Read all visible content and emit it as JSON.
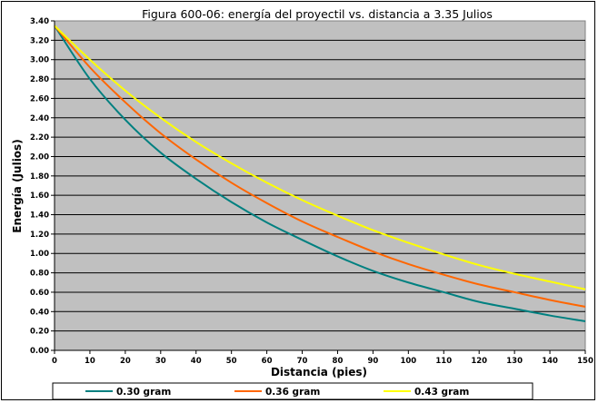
{
  "chart_data": {
    "type": "line",
    "title": "Figura 600-06: energía del proyectil vs. distancia a 3.35 Julios",
    "xlabel": "Distancia (pies)",
    "ylabel": "Energía (Julios)",
    "xlim": [
      0,
      150
    ],
    "ylim": [
      0,
      3.4
    ],
    "xticks": [
      0,
      10,
      20,
      30,
      40,
      50,
      60,
      70,
      80,
      90,
      100,
      110,
      120,
      130,
      140,
      150
    ],
    "yticks": [
      "0.00",
      "0.20",
      "0.40",
      "0.60",
      "0.80",
      "1.00",
      "1.20",
      "1.40",
      "1.60",
      "1.80",
      "2.00",
      "2.20",
      "2.40",
      "2.60",
      "2.80",
      "3.00",
      "3.20",
      "3.40"
    ],
    "grid": true,
    "legend_position": "bottom",
    "plot_background": "#C0C0C0",
    "x": [
      0,
      10,
      20,
      30,
      40,
      50,
      60,
      70,
      80,
      90,
      100,
      110,
      120,
      130,
      140,
      150
    ],
    "series": [
      {
        "name": "0.30 gram",
        "color": "#008080",
        "values": [
          3.35,
          2.8,
          2.38,
          2.04,
          1.77,
          1.53,
          1.32,
          1.14,
          0.97,
          0.82,
          0.7,
          0.6,
          0.5,
          0.43,
          0.36,
          0.3
        ]
      },
      {
        "name": "0.36 gram",
        "color": "#FF6600",
        "values": [
          3.35,
          2.92,
          2.56,
          2.24,
          1.97,
          1.73,
          1.52,
          1.33,
          1.17,
          1.02,
          0.89,
          0.78,
          0.68,
          0.6,
          0.52,
          0.45
        ]
      },
      {
        "name": "0.43 gram",
        "color": "#FFFF00",
        "values": [
          3.35,
          3.0,
          2.68,
          2.4,
          2.15,
          1.93,
          1.73,
          1.55,
          1.39,
          1.24,
          1.11,
          0.99,
          0.88,
          0.79,
          0.71,
          0.63
        ]
      }
    ]
  }
}
